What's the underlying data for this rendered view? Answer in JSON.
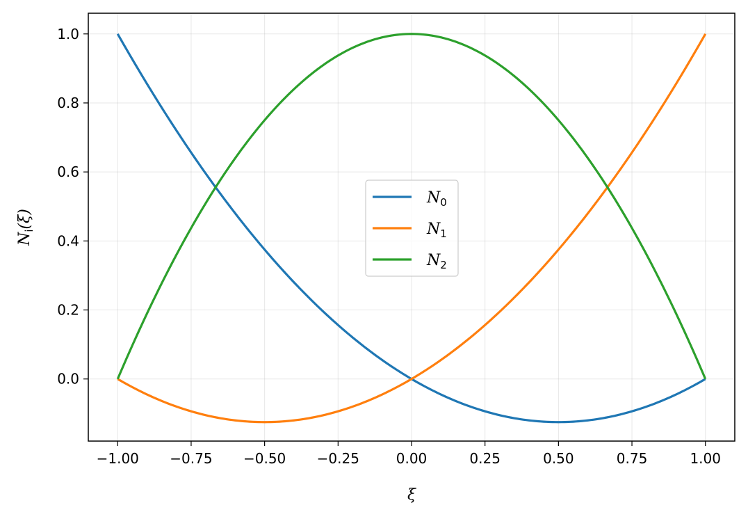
{
  "chart_data": {
    "type": "line",
    "xlabel": "ξ",
    "ylabel": "N_i(ξ)",
    "ylabel_base": "N",
    "ylabel_sub": "i",
    "ylabel_rest": "(ξ)",
    "xlim": [
      -1.1,
      1.1
    ],
    "ylim": [
      -0.18,
      1.06
    ],
    "xticks": [
      -1.0,
      -0.75,
      -0.5,
      -0.25,
      0.0,
      0.25,
      0.5,
      0.75,
      1.0
    ],
    "xtick_labels": [
      "−1.00",
      "−0.75",
      "−0.50",
      "−0.25",
      "0.00",
      "0.25",
      "0.50",
      "0.75",
      "1.00"
    ],
    "yticks": [
      0.0,
      0.2,
      0.4,
      0.6,
      0.8,
      1.0
    ],
    "ytick_labels": [
      "0.0",
      "0.2",
      "0.4",
      "0.6",
      "0.8",
      "1.0"
    ],
    "grid": true,
    "legend_position": "center",
    "x": [
      -1.0,
      -0.75,
      -0.5,
      -0.25,
      0.0,
      0.25,
      0.5,
      0.75,
      1.0
    ],
    "series": [
      {
        "name": "N_0",
        "base": "N",
        "sub": "0",
        "color": "#1f77b4",
        "values": [
          1.0,
          0.65625,
          0.375,
          0.15625,
          0.0,
          -0.09375,
          -0.125,
          -0.09375,
          0.0
        ]
      },
      {
        "name": "N_1",
        "base": "N",
        "sub": "1",
        "color": "#ff7f0e",
        "values": [
          0.0,
          -0.09375,
          -0.125,
          -0.09375,
          0.0,
          0.15625,
          0.375,
          0.65625,
          1.0
        ]
      },
      {
        "name": "N_2",
        "base": "N",
        "sub": "2",
        "color": "#2ca02c",
        "values": [
          0.0,
          0.4375,
          0.75,
          0.9375,
          1.0,
          0.9375,
          0.75,
          0.4375,
          0.0
        ]
      }
    ]
  }
}
